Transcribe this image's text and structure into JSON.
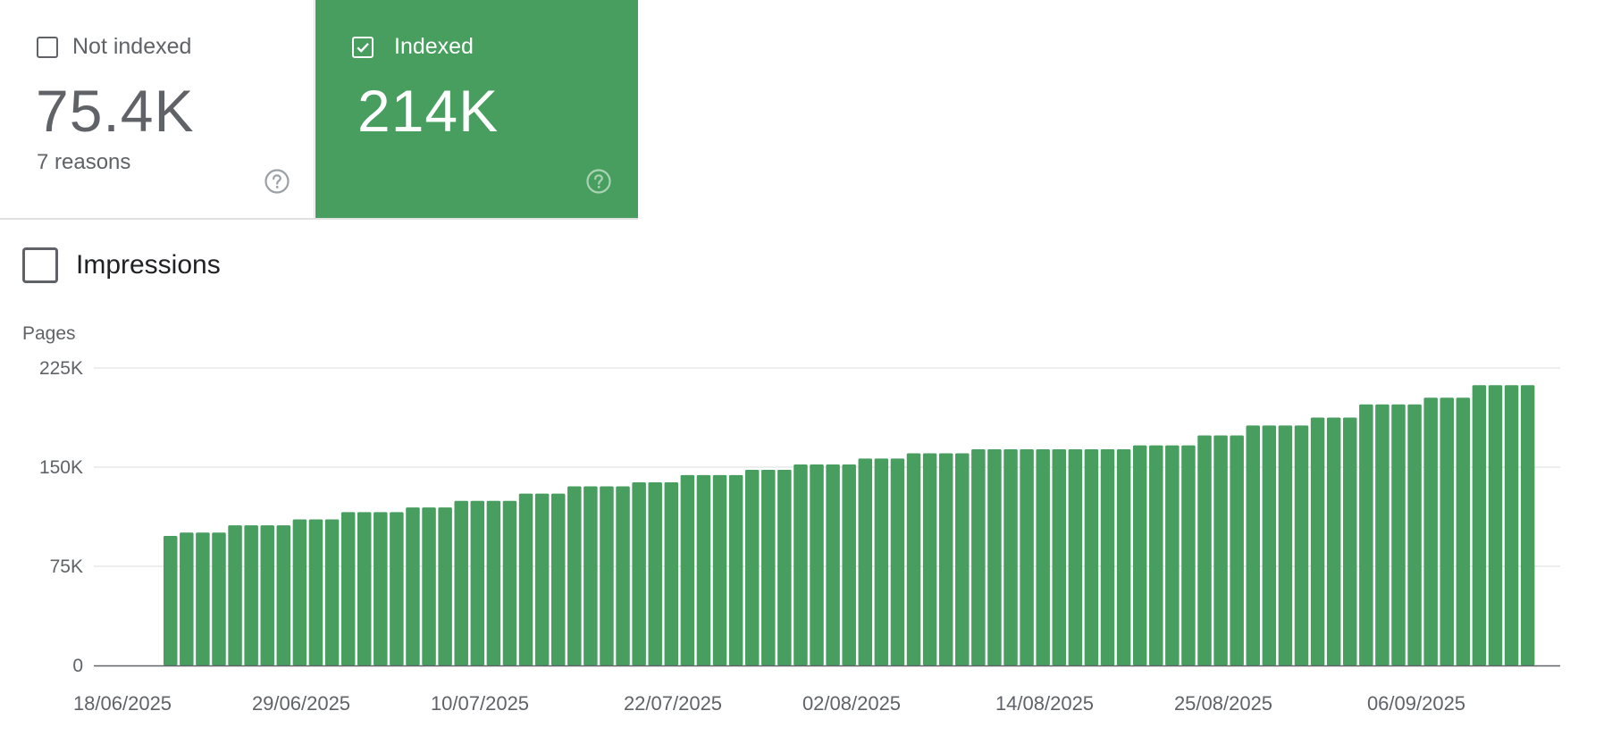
{
  "cards": {
    "not_indexed": {
      "label": "Not indexed",
      "value": "75.4K",
      "sub": "7 reasons",
      "checked": false
    },
    "indexed": {
      "label": "Indexed",
      "value": "214K",
      "checked": true
    }
  },
  "impressions": {
    "label": "Impressions",
    "checked": false
  },
  "colors": {
    "accent": "#479e5f",
    "bar": "#479e5f",
    "grid": "#e8e8e8",
    "axis": "#5f6368"
  },
  "icons": {
    "help": "help-circle-icon",
    "check": "check-icon"
  },
  "chart_data": {
    "type": "bar",
    "ylabel": "Pages",
    "ylim": [
      0,
      225000
    ],
    "yticks": [
      "225K",
      "150K",
      "75K",
      "0"
    ],
    "ytick_values": [
      225000,
      150000,
      75000,
      0
    ],
    "x_labels": [
      "18/06/2025",
      "29/06/2025",
      "10/07/2025",
      "22/07/2025",
      "02/08/2025",
      "14/08/2025",
      "25/08/2025",
      "06/09/2025"
    ],
    "grid": true,
    "series": [
      {
        "values": [
          98000,
          100500,
          100500,
          100500,
          106000,
          106000,
          106000,
          106000,
          110500,
          110500,
          110500,
          116000,
          116000,
          116000,
          116000,
          119500,
          119500,
          119500,
          124500,
          124500,
          124500,
          124500,
          130000,
          130000,
          130000,
          135500,
          135500,
          135500,
          135500,
          138500,
          138500,
          138500,
          144000,
          144000,
          144000,
          144000,
          148000,
          148000,
          148000,
          152000,
          152000,
          152000,
          152000,
          156500,
          156500,
          156500,
          160500,
          160500,
          160500,
          160500,
          163500,
          163500,
          163500,
          163500,
          163500,
          163500,
          163500,
          163500,
          163500,
          163500,
          166500,
          166500,
          166500,
          166500,
          174000,
          174000,
          174000,
          181500,
          181500,
          181500,
          181500,
          187500,
          187500,
          187500,
          197500,
          197500,
          197500,
          197500,
          202500,
          202500,
          202500,
          212000,
          212000,
          212000,
          212000
        ]
      }
    ]
  }
}
